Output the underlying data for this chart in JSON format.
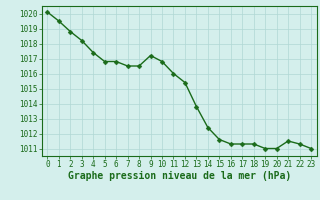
{
  "x": [
    0,
    1,
    2,
    3,
    4,
    5,
    6,
    7,
    8,
    9,
    10,
    11,
    12,
    13,
    14,
    15,
    16,
    17,
    18,
    19,
    20,
    21,
    22,
    23
  ],
  "y": [
    1020.1,
    1019.5,
    1018.8,
    1018.2,
    1017.4,
    1016.8,
    1016.8,
    1016.5,
    1016.5,
    1017.2,
    1016.8,
    1016.0,
    1015.4,
    1013.8,
    1012.4,
    1011.6,
    1011.3,
    1011.3,
    1011.3,
    1011.0,
    1011.0,
    1011.5,
    1011.3,
    1011.0
  ],
  "xlim": [
    -0.5,
    23.5
  ],
  "ylim": [
    1010.5,
    1020.5
  ],
  "yticks": [
    1011,
    1012,
    1013,
    1014,
    1015,
    1016,
    1017,
    1018,
    1019,
    1020
  ],
  "xticks": [
    0,
    1,
    2,
    3,
    4,
    5,
    6,
    7,
    8,
    9,
    10,
    11,
    12,
    13,
    14,
    15,
    16,
    17,
    18,
    19,
    20,
    21,
    22,
    23
  ],
  "xlabel": "Graphe pression niveau de la mer (hPa)",
  "line_color": "#1a6b1a",
  "marker_color": "#1a6b1a",
  "bg_color": "#d4efec",
  "grid_color": "#b0d8d4",
  "tick_label_fontsize": 5.5,
  "xlabel_fontsize": 7.0,
  "line_width": 1.0,
  "marker_size": 2.5
}
